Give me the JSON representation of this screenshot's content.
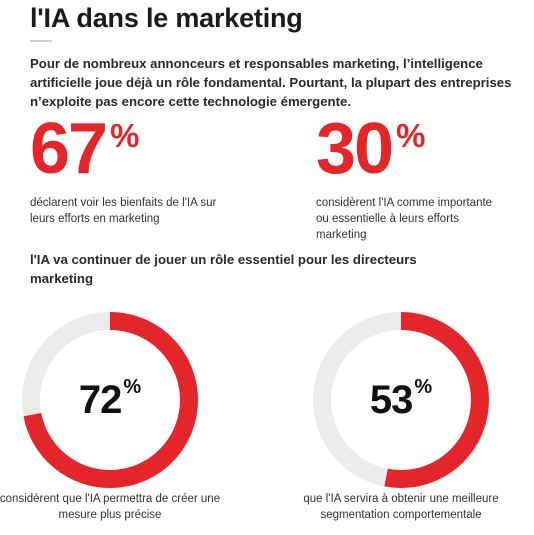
{
  "title": "l'IA dans le marketing",
  "intro": "Pour de nombreux annonceurs et responsables marketing, l’intelligence artificielle joue déjà un rôle fondamental. Pourtant, la plupart des entreprises n’exploite pas encore cette technologie émergente.",
  "colors": {
    "accent": "#e4262a",
    "track": "#ececec"
  },
  "stats": [
    {
      "value": "67",
      "unit": "%",
      "description": "déclarent voir les bienfaits de l'IA sur leurs efforts en marketing"
    },
    {
      "value": "30",
      "unit": "%",
      "description": "considèrent l'IA comme importante ou essentielle à leurs efforts marketing"
    }
  ],
  "section_heading": "l'IA va continuer de jouer un rôle essentiel pour les directeurs marketing",
  "donuts": [
    {
      "value": "72",
      "unit": "%",
      "fraction": 0.72,
      "description": "considèrent que l'IA permettra de créer une mesure plus précise"
    },
    {
      "value": "53",
      "unit": "%",
      "fraction": 0.53,
      "description": "que l'IA servira à obtenir une meilleure segmentation comportementale"
    }
  ]
}
